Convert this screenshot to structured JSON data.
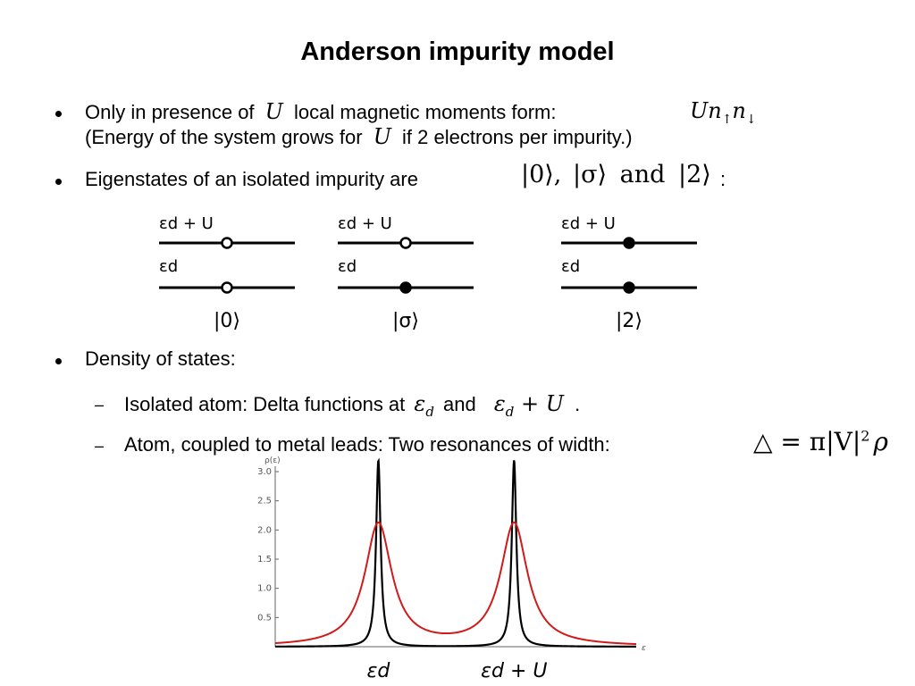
{
  "title": "Anderson impurity model",
  "bullets": {
    "b1_line1_pre": "Only in presence of",
    "b1_line1_sym": "U",
    "b1_line1_post": "local magnetic moments form:",
    "b1_term": "Un",
    "b1_term_sub1": "↑",
    "b1_term_n2": "n",
    "b1_term_sub2": "↓",
    "b1_line2_pre": "(Energy of the system grows for",
    "b1_line2_sym": "U",
    "b1_line2_post": "if 2 electrons per impurity.)",
    "b2_pre": "Eigenstates of an isolated impurity are",
    "b2_ket0": "|0⟩,",
    "b2_ketsigma": "|σ⟩",
    "b2_and": "and",
    "b2_ket2": "|2⟩",
    "b2_colon": ":",
    "b3": "Density of states:",
    "sub1_pre": "Isolated atom: Delta functions at",
    "sub1_ed": "ε",
    "sub1_ed_sub": "d",
    "sub1_and": "and",
    "sub1_edU": "ε",
    "sub1_edU_sub": "d",
    "sub1_edU_plus": "+ U",
    "sub1_period": ".",
    "sub2_pre": "Atom, coupled to metal leads: Two resonances of width:",
    "sub2_formula_delta": "△ = π|V|",
    "sub2_formula_sup": "2",
    "sub2_formula_rho": "ρ"
  },
  "diagram": {
    "upper_label": "εd + U",
    "lower_label": "εd",
    "states": [
      {
        "ket": "|0⟩",
        "upper": "empty",
        "lower": "empty"
      },
      {
        "ket": "|σ⟩",
        "upper": "empty",
        "lower": "filled"
      },
      {
        "ket": "|2⟩",
        "upper": "filled",
        "lower": "filled"
      }
    ]
  },
  "chart_data": {
    "type": "line",
    "ylabel": "ρ(ε)",
    "xlabel": "ε",
    "ylim": [
      0,
      3.0
    ],
    "yticks": [
      "0.5",
      "1.0",
      "1.5",
      "2.0",
      "2.5",
      "3.0"
    ],
    "x_markers": [
      "εd",
      "εd + U"
    ],
    "series": [
      {
        "name": "",
        "color": "#000000",
        "values_desc": "delta peaks",
        "peaks": [
          {
            "x": 1,
            "height": 3.2
          },
          {
            "x": 2,
            "height": 3.2
          }
        ],
        "width": 0.02
      },
      {
        "name": "",
        "color": "#d11a1a",
        "peaks": [
          {
            "x": 1,
            "height": 2.1
          },
          {
            "x": 2,
            "height": 2.1
          }
        ],
        "width": 0.12
      }
    ]
  },
  "colors": {
    "black_series": "#000000",
    "red_series": "#d11a1a"
  }
}
